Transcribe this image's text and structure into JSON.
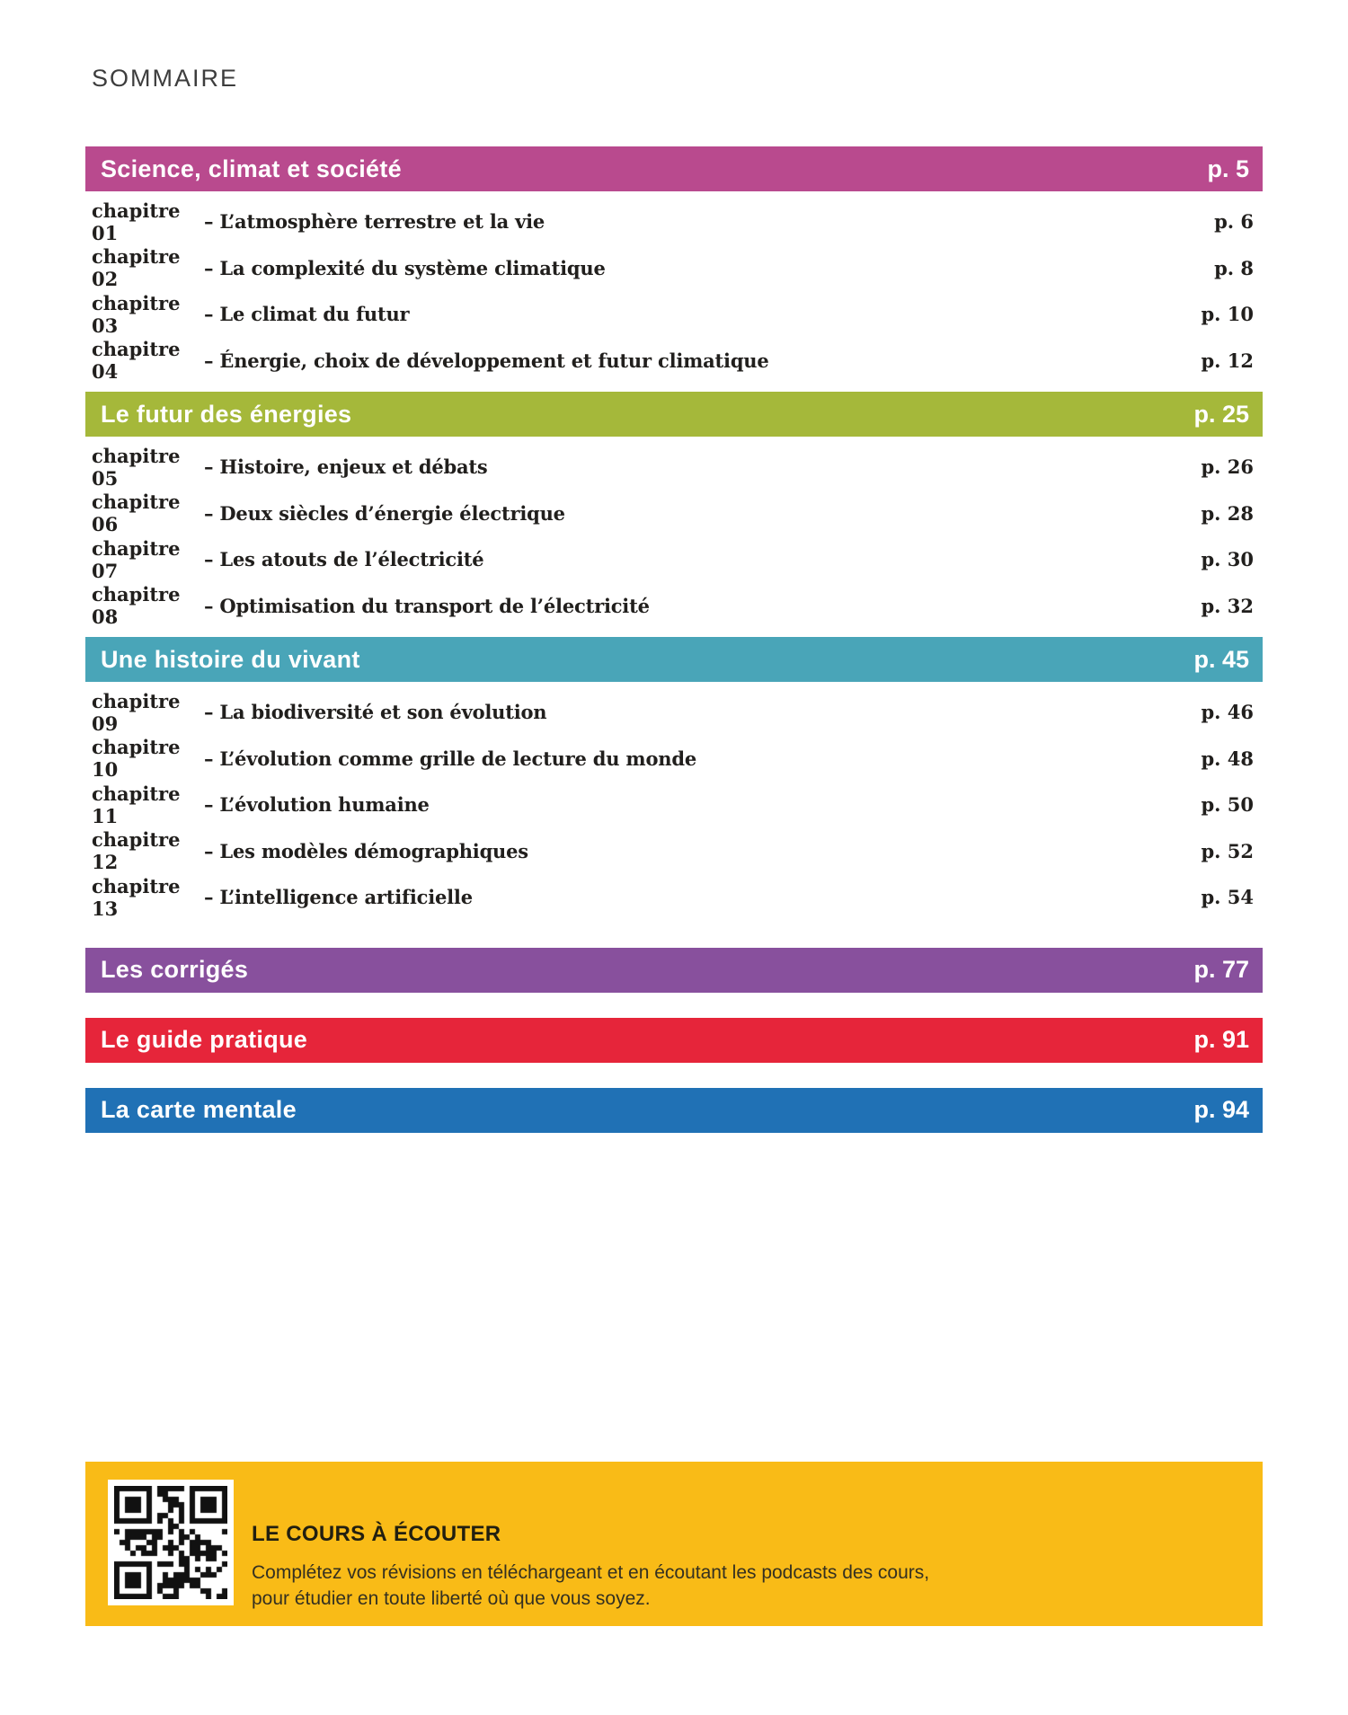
{
  "page_title": "SOMMAIRE",
  "sections": [
    {
      "label": "Science, climat et société",
      "page": "p. 5",
      "color": "#b94a8e",
      "chapters": [
        {
          "label": "chapitre 01",
          "title": "– L’atmosphère terrestre et la vie",
          "page": "p. 6"
        },
        {
          "label": "chapitre 02",
          "title": "– La complexité du système climatique",
          "page": "p. 8"
        },
        {
          "label": "chapitre 03",
          "title": "– Le climat du futur",
          "page": "p. 10"
        },
        {
          "label": "chapitre 04",
          "title": "– Énergie, choix de développement et futur climatique",
          "page": "p. 12"
        }
      ]
    },
    {
      "label": "Le futur des énergies",
      "page": "p. 25",
      "color": "#a5b83a",
      "chapters": [
        {
          "label": "chapitre 05",
          "title": "– Histoire, enjeux et débats",
          "page": "p. 26"
        },
        {
          "label": "chapitre 06",
          "title": "– Deux siècles d’énergie électrique",
          "page": "p. 28"
        },
        {
          "label": "chapitre 07",
          "title": "– Les atouts de l’électricité",
          "page": "p. 30"
        },
        {
          "label": "chapitre 08",
          "title": "– Optimisation du transport de l’électricité",
          "page": "p. 32"
        }
      ]
    },
    {
      "label": "Une histoire du vivant",
      "page": "p. 45",
      "color": "#49a5b8",
      "chapters": [
        {
          "label": "chapitre 09",
          "title": "– La biodiversité et son évolution",
          "page": "p. 46"
        },
        {
          "label": "chapitre 10",
          "title": "– L’évolution comme grille de lecture du monde",
          "page": "p. 48"
        },
        {
          "label": "chapitre 11",
          "title": "– L’évolution humaine",
          "page": "p. 50"
        },
        {
          "label": "chapitre 12",
          "title": "– Les modèles démographiques",
          "page": "p. 52"
        },
        {
          "label": "chapitre 13",
          "title": "– L’intelligence artificielle",
          "page": "p. 54"
        }
      ]
    },
    {
      "label": "Les corrigés",
      "page": "p. 77",
      "color": "#88509d",
      "chapters": []
    },
    {
      "label": "Le guide pratique",
      "page": "p. 91",
      "color": "#e6253a",
      "chapters": []
    },
    {
      "label": "La carte mentale",
      "page": "p. 94",
      "color": "#2071b5",
      "chapters": []
    }
  ],
  "podcast_box": {
    "bg_color": "#f9bb17",
    "qr_icon": "qr-code-icon",
    "heading": "LE COURS À ÉCOUTER",
    "line1": "Complétez vos révisions en téléchargeant et en écoutant les podcasts des cours,",
    "line2": "pour étudier en toute liberté où que vous soyez."
  }
}
